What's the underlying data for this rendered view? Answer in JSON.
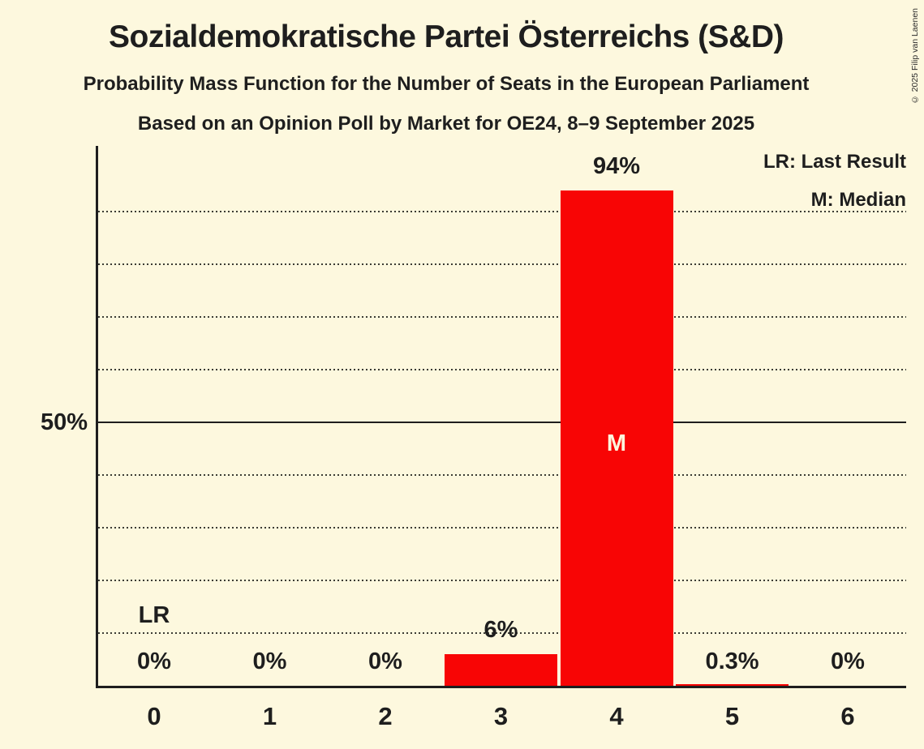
{
  "title": "Sozialdemokratische Partei Österreichs (S&D)",
  "subtitle1": "Probability Mass Function for the Number of Seats in the European Parliament",
  "subtitle2": "Based on an Opinion Poll by Market for OE24, 8–9 September 2025",
  "copyright": "© 2025 Filip van Laenen",
  "legend": {
    "lr": "LR: Last Result",
    "m": "M: Median"
  },
  "y_axis": {
    "tick_label": "50%"
  },
  "chart_data": {
    "type": "bar",
    "title": "Sozialdemokratische Partei Österreichs (S&D)",
    "subtitle": "Probability Mass Function for the Number of Seats in the European Parliament",
    "source_line": "Based on an Opinion Poll by Market for OE24, 8–9 September 2025",
    "categories": [
      "0",
      "1",
      "2",
      "3",
      "4",
      "5",
      "6"
    ],
    "values": [
      0,
      0,
      0,
      6,
      94,
      0.3,
      0
    ],
    "value_labels": [
      "0%",
      "0%",
      "0%",
      "6%",
      "94%",
      "0.3%",
      "0%"
    ],
    "ylim": [
      0,
      102.6
    ],
    "y_tick_labeled_pct": 50,
    "gridline_step_pct": 10,
    "solid_line_pct": 50,
    "grid": "dotted horizontal every 10%, solid at 50%",
    "legend_position": "top-right",
    "legend_entries": [
      "LR: Last Result",
      "M: Median"
    ],
    "annotations": {
      "lr_label": "LR",
      "last_result_category": "0",
      "median_label": "M",
      "median_category": "4"
    },
    "colors": {
      "bar": "#F80505",
      "background": "#FDF8DE",
      "text": "#1E1E1E"
    }
  }
}
